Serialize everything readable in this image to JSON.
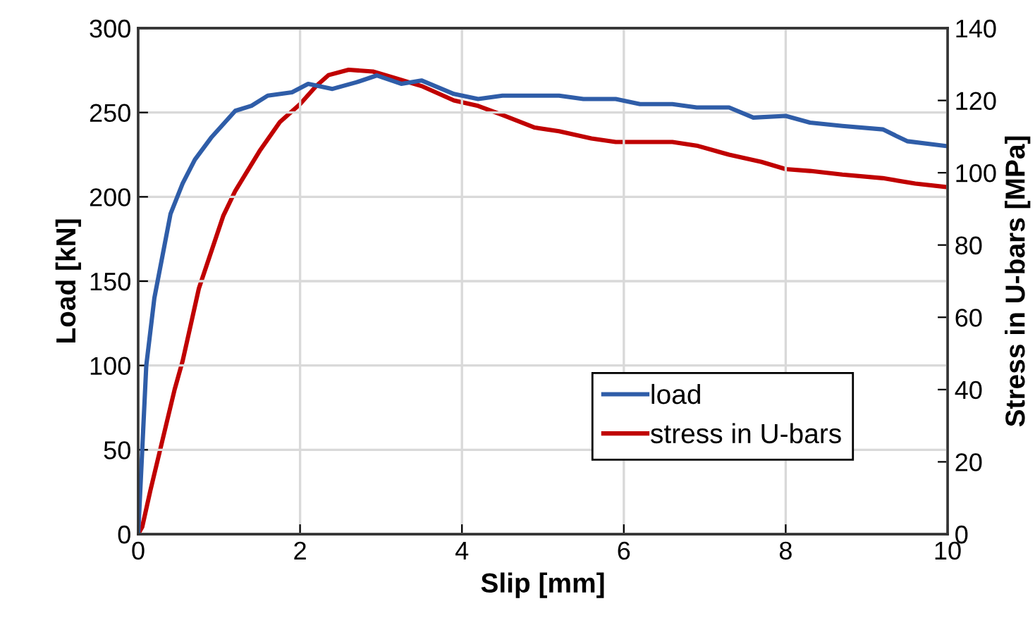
{
  "chart_data": {
    "type": "line",
    "xlabel": "Slip [mm]",
    "ylabel": "Load [kN]",
    "y2label": "Stress in U-bars [MPa]",
    "xlim": [
      0,
      10
    ],
    "xticks": [
      0,
      2,
      4,
      6,
      8,
      10
    ],
    "ylim": [
      0,
      300
    ],
    "yticks": [
      0,
      50,
      100,
      150,
      200,
      250,
      300
    ],
    "y2lim": [
      0,
      140
    ],
    "y2ticks": [
      0,
      20,
      40,
      60,
      80,
      100,
      120,
      140
    ],
    "grid": true,
    "legend": "bottom right",
    "marker": "none",
    "line_style": "solid",
    "series": [
      {
        "name": "load",
        "color": "#2f5da8",
        "x": [
          0,
          0.05,
          0.1,
          0.2,
          0.3,
          0.4,
          0.55,
          0.7,
          0.9,
          1.2,
          1.4,
          1.6,
          1.9,
          2.1,
          2.4,
          2.7,
          2.95,
          3.25,
          3.5,
          3.9,
          4.2,
          4.5,
          4.9,
          5.2,
          5.5,
          5.9,
          6.2,
          6.6,
          6.9,
          7.3,
          7.6,
          8,
          8.3,
          8.7,
          9.2,
          9.5,
          10
        ],
        "values": [
          0,
          50,
          100,
          140,
          165,
          190,
          208,
          222,
          235,
          251,
          254,
          260,
          262,
          267,
          264,
          268,
          272,
          267,
          269,
          261,
          258,
          260,
          260,
          260,
          258,
          258,
          255,
          255,
          253,
          253,
          247,
          248,
          244,
          242,
          240,
          233,
          230
        ]
      },
      {
        "name": "stress in U-bars",
        "color": "#c00000",
        "axis": "y2",
        "x": [
          0,
          0.05,
          0.15,
          0.3,
          0.45,
          0.55,
          0.65,
          0.75,
          0.9,
          1.05,
          1.2,
          1.5,
          1.75,
          2,
          2.2,
          2.35,
          2.6,
          2.9,
          3.2,
          3.5,
          3.9,
          4.2,
          4.5,
          4.9,
          5.2,
          5.6,
          5.9,
          6.6,
          6.9,
          7.3,
          7.7,
          8,
          8.3,
          8.7,
          9.2,
          9.6,
          10
        ],
        "values": [
          0,
          2,
          12,
          26,
          40,
          48,
          58,
          68,
          78,
          88,
          95,
          106,
          114,
          119,
          124,
          127,
          128.5,
          128,
          126,
          124,
          120,
          118.5,
          116,
          112.5,
          111.5,
          109.5,
          108.5,
          108.5,
          107.5,
          105,
          103,
          101,
          100.5,
          99.5,
          98.5,
          97,
          96
        ]
      }
    ]
  }
}
